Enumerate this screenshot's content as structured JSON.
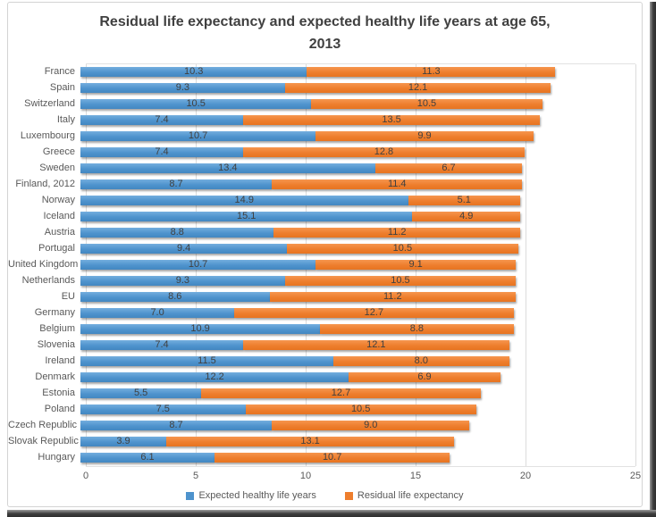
{
  "title": {
    "text": "Residual life expectancy and expected healthy life years at age 65, 2013",
    "lines": [
      "Residual life expectancy and expected healthy life years at age 65,",
      "2013"
    ]
  },
  "chart_data": {
    "type": "bar",
    "orientation": "horizontal",
    "stacked": true,
    "title": "Residual life expectancy and expected healthy life years at age 65, 2013",
    "categories": [
      "France",
      "Spain",
      "Switzerland",
      "Italy",
      "Luxembourg",
      "Greece",
      "Sweden",
      "Finland, 2012",
      "Norway",
      "Iceland",
      "Austria",
      "Portugal",
      "United Kingdom",
      "Netherlands",
      "EU",
      "Germany",
      "Belgium",
      "Slovenia",
      "Ireland",
      "Denmark",
      "Estonia",
      "Poland",
      "Czech Republic",
      "Slovak Republic",
      "Hungary"
    ],
    "series": [
      {
        "name": "Expected healthy life years",
        "color": "#4e93cd",
        "values": [
          10.3,
          9.3,
          10.5,
          7.4,
          10.7,
          7.4,
          13.4,
          8.7,
          14.9,
          15.1,
          8.8,
          9.4,
          10.7,
          9.3,
          8.6,
          7.0,
          10.9,
          7.4,
          11.5,
          12.2,
          5.5,
          7.5,
          8.7,
          3.9,
          6.1
        ]
      },
      {
        "name": "Residual life expectancy",
        "color": "#ee7e2d",
        "values": [
          11.3,
          12.1,
          10.5,
          13.5,
          9.9,
          12.8,
          6.7,
          11.4,
          5.1,
          4.9,
          11.2,
          10.5,
          9.1,
          10.5,
          11.2,
          12.7,
          8.8,
          12.1,
          8.0,
          6.9,
          12.7,
          10.5,
          9.0,
          13.1,
          10.7
        ]
      }
    ],
    "xlabel": "",
    "ylabel": "",
    "xlim": [
      0,
      25
    ],
    "x_ticks": [
      0,
      5,
      10,
      15,
      20,
      25
    ],
    "grid": true,
    "value_labels": true,
    "legend_position": "bottom",
    "colors": {
      "grid": "#dcdcdc",
      "text": "#595959",
      "value_label": "#404040",
      "title": "#404040"
    }
  }
}
